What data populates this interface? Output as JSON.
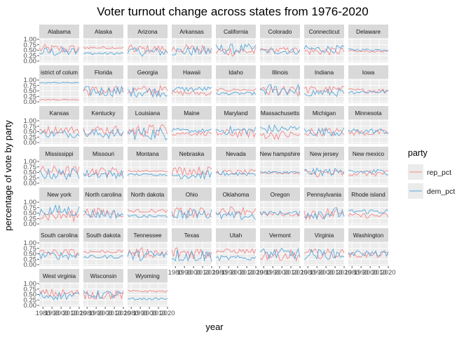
{
  "chart_data": {
    "type": "line",
    "title": "Voter turnout change across states from 1976-2020",
    "xlabel": "year",
    "ylabel": "percentage of vote by party",
    "xlim": [
      1976,
      2020
    ],
    "ylim": [
      0,
      1
    ],
    "y_ticks": [
      "0.00",
      "0.25",
      "0.50",
      "0.75",
      "1.00"
    ],
    "x_ticks": [
      "1980",
      "1990",
      "2000",
      "2010",
      "2020"
    ],
    "legend": {
      "title": "party",
      "position": "right",
      "entries": [
        {
          "name": "rep_pct",
          "color": "#F8766D"
        },
        {
          "name": "dem_pct",
          "color": "#00BFC4"
        }
      ]
    },
    "grid": true,
    "series_colors": {
      "rep_pct": "#F4878A",
      "dem_pct": "#56A8DA"
    },
    "facet_labels": [
      "Alabama",
      "Alaska",
      "Arizona",
      "Arkansas",
      "California",
      "Colorado",
      "Connecticut",
      "Delaware",
      "istrict of colum",
      "Florida",
      "Georgia",
      "Hawaii",
      "Idaho",
      "Illinois",
      "Indiana",
      "Iowa",
      "Kansas",
      "Kentucky",
      "Louisiana",
      "Maine",
      "Maryland",
      "Massachusetts",
      "Michigan",
      "Minnesota",
      "Mississippi",
      "Missouri",
      "Montana",
      "Nebraska",
      "Nevada",
      "New hampshire",
      "New jersey",
      "New mexico",
      "New york",
      "North carolina",
      "North dakota",
      "Ohio",
      "Oklahoma",
      "Oregon",
      "Pennsylvania",
      "Rhode island",
      "South carolina",
      "South dakota",
      "Tennessee",
      "Texas",
      "Utah",
      "Vermont",
      "Virginia",
      "Washington",
      "West virginia",
      "Wisconsin",
      "Wyoming"
    ],
    "facets": [
      {
        "rep": 0.55,
        "dem": 0.42,
        "noise": 0.22
      },
      {
        "rep": 0.62,
        "dem": 0.35,
        "noise": 0.06
      },
      {
        "rep": 0.55,
        "dem": 0.42,
        "noise": 0.2
      },
      {
        "rep": 0.55,
        "dem": 0.45,
        "noise": 0.22
      },
      {
        "rep": 0.45,
        "dem": 0.55,
        "noise": 0.24
      },
      {
        "rep": 0.5,
        "dem": 0.45,
        "noise": 0.14
      },
      {
        "rep": 0.45,
        "dem": 0.55,
        "noise": 0.18
      },
      {
        "rep": 0.45,
        "dem": 0.52,
        "noise": 0.05
      },
      {
        "rep": 0.1,
        "dem": 0.88,
        "noise": 0.02
      },
      {
        "rep": 0.5,
        "dem": 0.48,
        "noise": 0.24
      },
      {
        "rep": 0.52,
        "dem": 0.46,
        "noise": 0.24
      },
      {
        "rep": 0.4,
        "dem": 0.58,
        "noise": 0.12
      },
      {
        "rep": 0.55,
        "dem": 0.38,
        "noise": 0.07
      },
      {
        "rep": 0.45,
        "dem": 0.55,
        "noise": 0.28
      },
      {
        "rep": 0.55,
        "dem": 0.42,
        "noise": 0.18
      },
      {
        "rep": 0.52,
        "dem": 0.46,
        "noise": 0.1
      },
      {
        "rep": 0.58,
        "dem": 0.4,
        "noise": 0.18
      },
      {
        "rep": 0.58,
        "dem": 0.4,
        "noise": 0.22
      },
      {
        "rep": 0.55,
        "dem": 0.42,
        "noise": 0.3
      },
      {
        "rep": 0.42,
        "dem": 0.54,
        "noise": 0.1
      },
      {
        "rep": 0.42,
        "dem": 0.55,
        "noise": 0.2
      },
      {
        "rep": 0.35,
        "dem": 0.62,
        "noise": 0.2
      },
      {
        "rep": 0.48,
        "dem": 0.5,
        "noise": 0.2
      },
      {
        "rep": 0.45,
        "dem": 0.52,
        "noise": 0.14
      },
      {
        "rep": 0.55,
        "dem": 0.42,
        "noise": 0.26
      },
      {
        "rep": 0.55,
        "dem": 0.42,
        "noise": 0.2
      },
      {
        "rep": 0.55,
        "dem": 0.4,
        "noise": 0.05
      },
      {
        "rep": 0.58,
        "dem": 0.38,
        "noise": 0.2
      },
      {
        "rep": 0.5,
        "dem": 0.45,
        "noise": 0.12
      },
      {
        "rep": 0.48,
        "dem": 0.5,
        "noise": 0.06
      },
      {
        "rep": 0.45,
        "dem": 0.52,
        "noise": 0.18
      },
      {
        "rep": 0.45,
        "dem": 0.52,
        "noise": 0.14
      },
      {
        "rep": 0.38,
        "dem": 0.6,
        "noise": 0.28
      },
      {
        "rep": 0.52,
        "dem": 0.46,
        "noise": 0.22
      },
      {
        "rep": 0.6,
        "dem": 0.35,
        "noise": 0.08
      },
      {
        "rep": 0.52,
        "dem": 0.45,
        "noise": 0.24
      },
      {
        "rep": 0.62,
        "dem": 0.36,
        "noise": 0.2
      },
      {
        "rep": 0.45,
        "dem": 0.5,
        "noise": 0.1
      },
      {
        "rep": 0.48,
        "dem": 0.5,
        "noise": 0.28
      },
      {
        "rep": 0.38,
        "dem": 0.58,
        "noise": 0.12
      },
      {
        "rep": 0.55,
        "dem": 0.42,
        "noise": 0.18
      },
      {
        "rep": 0.6,
        "dem": 0.36,
        "noise": 0.08
      },
      {
        "rep": 0.55,
        "dem": 0.42,
        "noise": 0.24
      },
      {
        "rep": 0.55,
        "dem": 0.42,
        "noise": 0.3
      },
      {
        "rep": 0.62,
        "dem": 0.3,
        "noise": 0.12
      },
      {
        "rep": 0.45,
        "dem": 0.5,
        "noise": 0.26
      },
      {
        "rep": 0.5,
        "dem": 0.48,
        "noise": 0.24
      },
      {
        "rep": 0.45,
        "dem": 0.52,
        "noise": 0.14
      },
      {
        "rep": 0.55,
        "dem": 0.45,
        "noise": 0.2
      },
      {
        "rep": 0.48,
        "dem": 0.5,
        "noise": 0.2
      },
      {
        "rep": 0.65,
        "dem": 0.3,
        "noise": 0.05
      }
    ]
  }
}
